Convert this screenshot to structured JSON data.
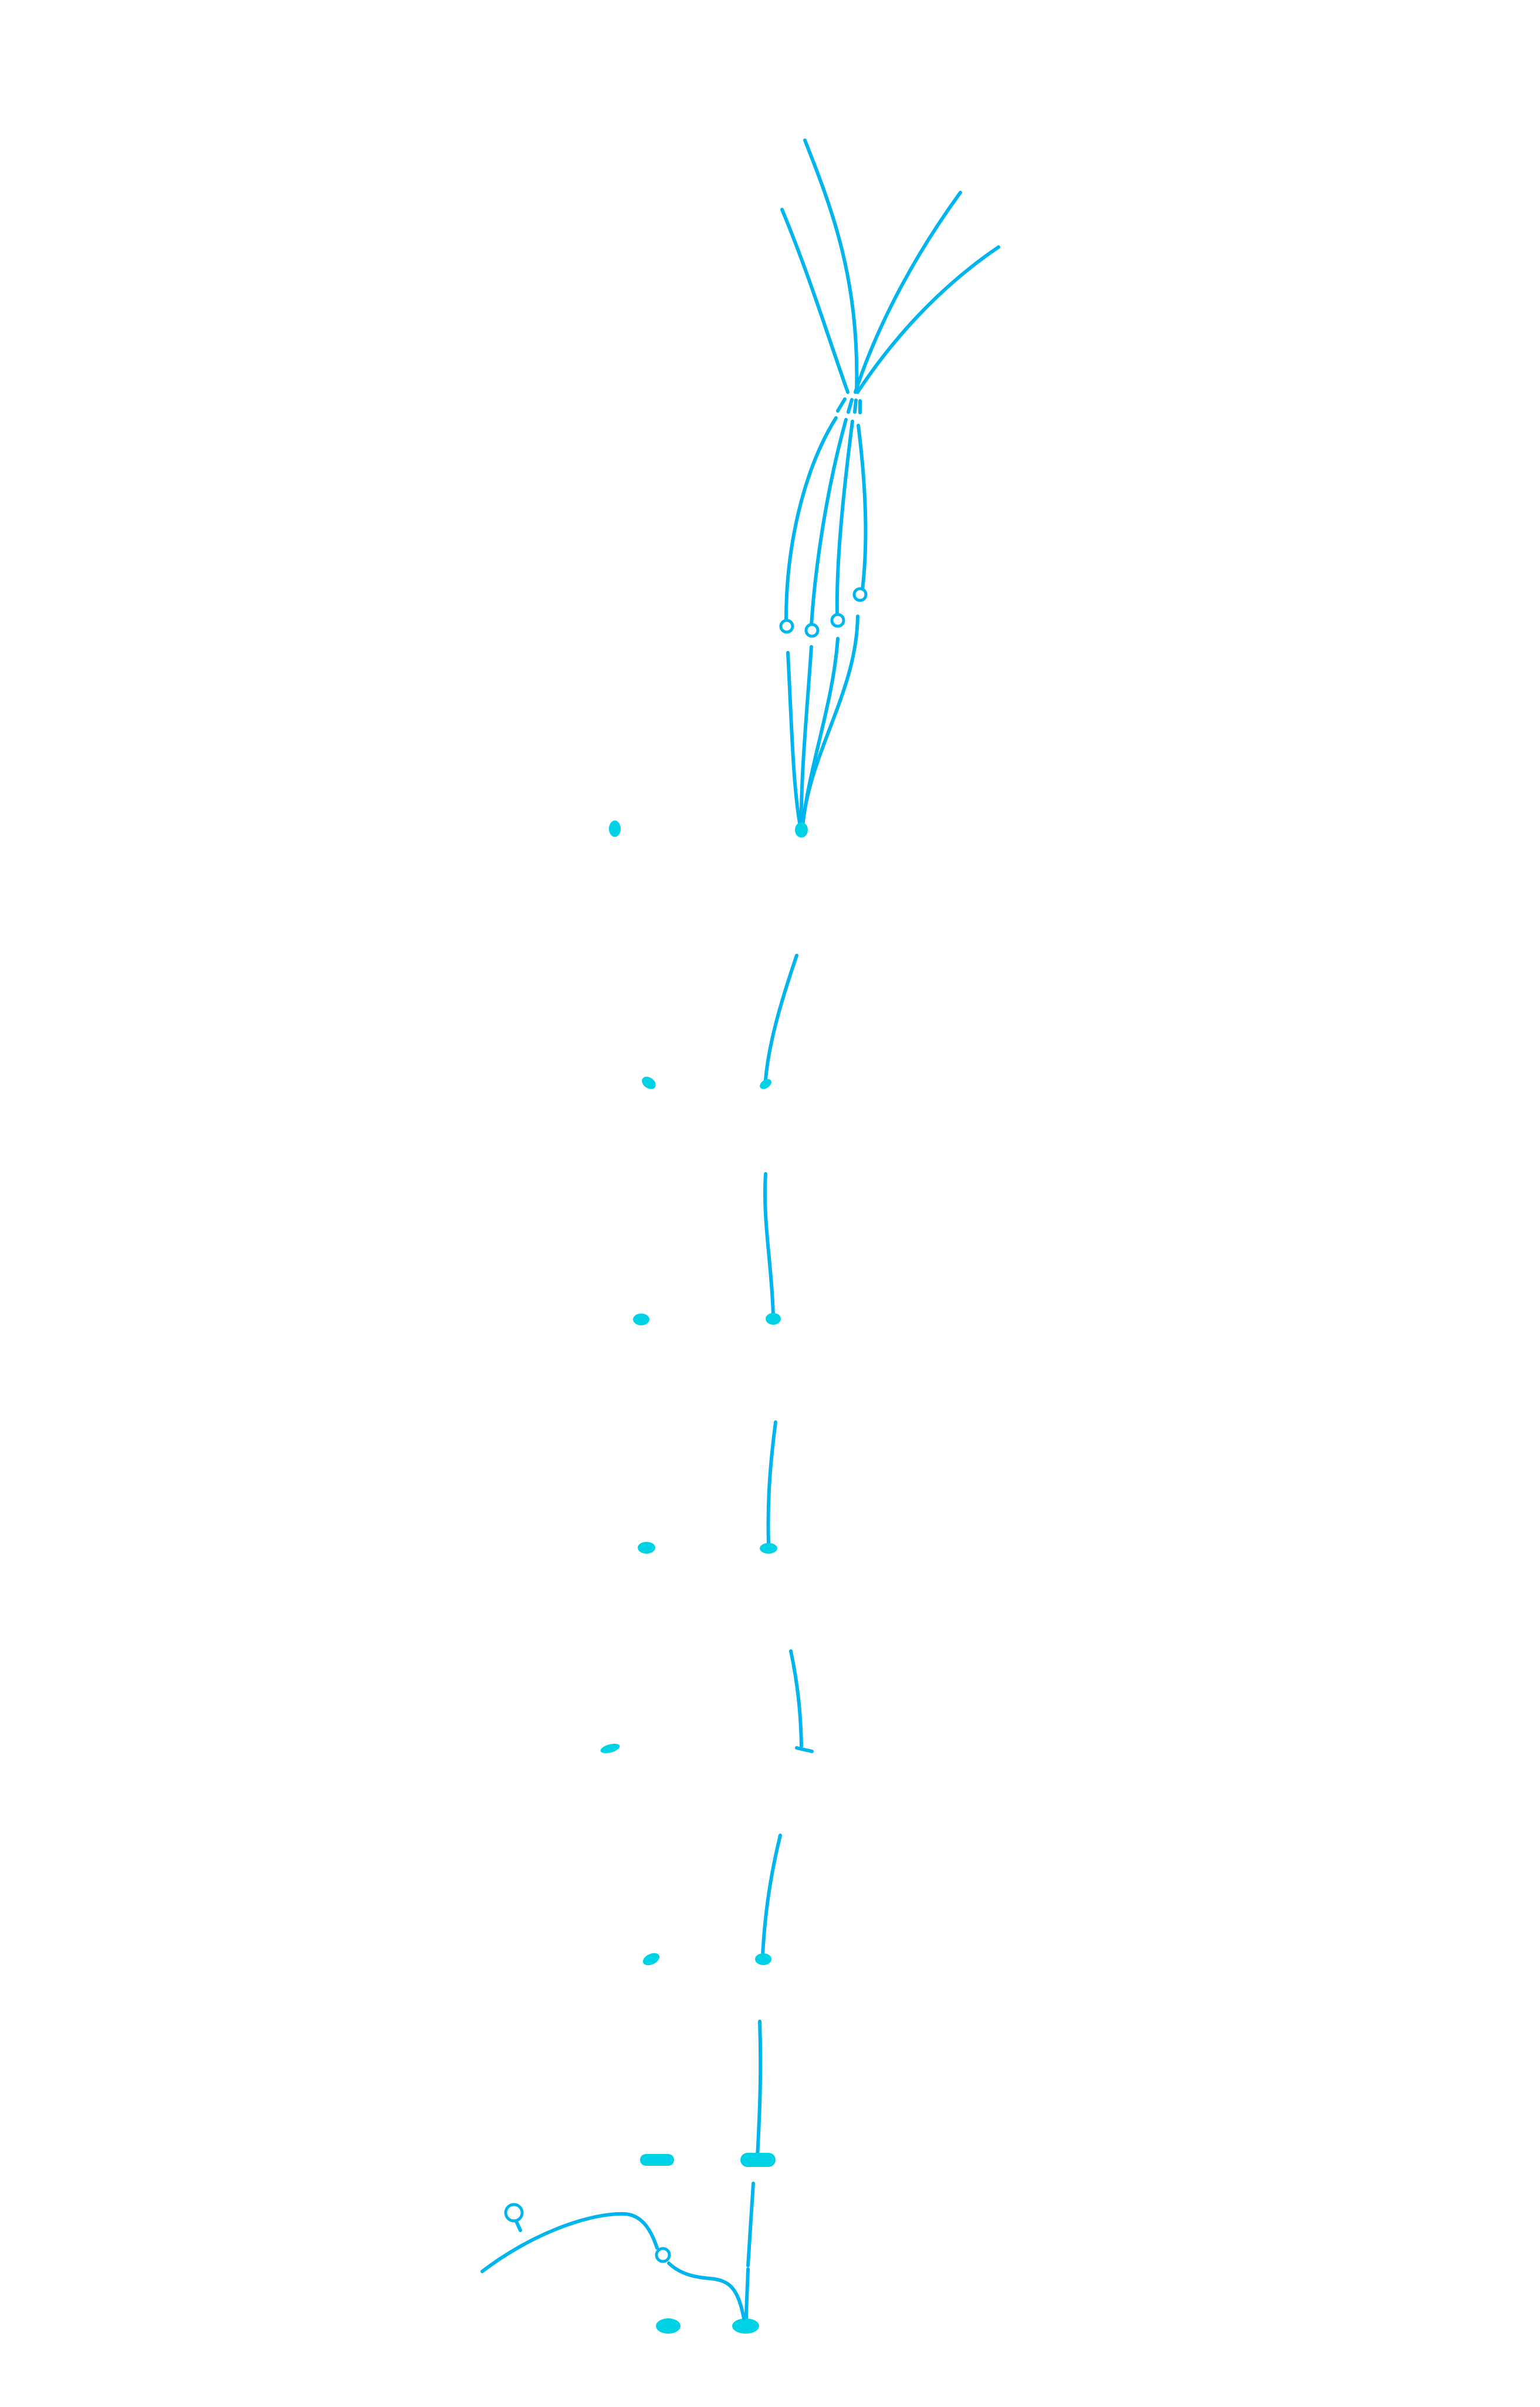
{
  "diagram": {
    "background": "#ffffff",
    "line_color": "#00b4ee",
    "dot_color": "#00d2e6",
    "node_style": "hollow circle",
    "tip_style": "filled dot"
  }
}
